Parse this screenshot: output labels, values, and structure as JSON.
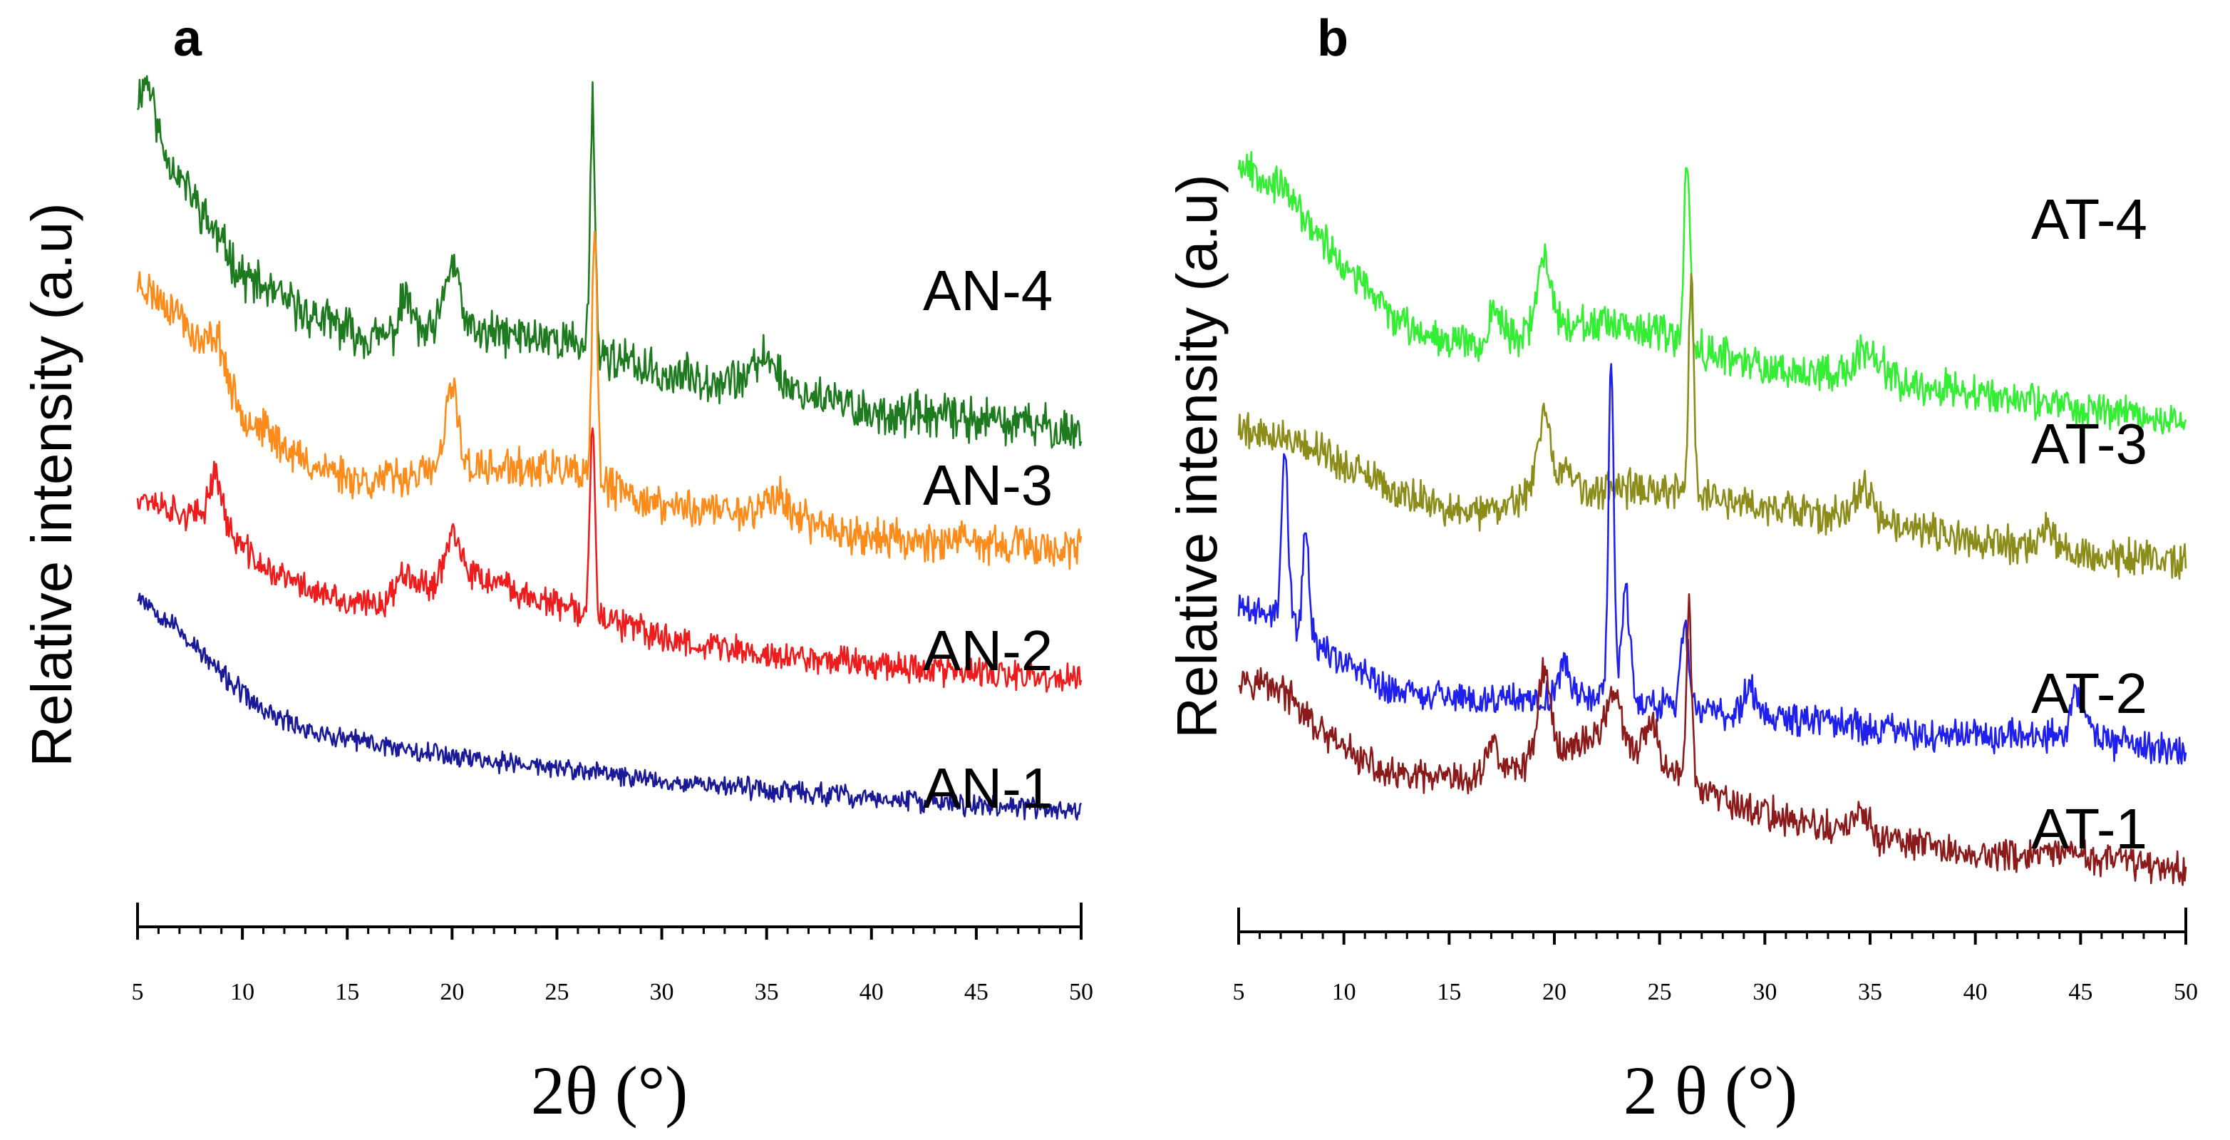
{
  "chart_data": [
    {
      "panel": "a",
      "type": "line",
      "title": "",
      "xlabel": "2θ (°)",
      "ylabel": "Relative intensity (a.u)",
      "xlim": [
        5,
        50
      ],
      "x_ticks": [
        5,
        10,
        15,
        20,
        25,
        30,
        35,
        40,
        45,
        50
      ],
      "grid": false,
      "series": [
        {
          "name": "AN-4",
          "color": "#1e7a1e",
          "baseline": 8.6,
          "noise": 0.28,
          "seed": 11,
          "amorphous": [
            [
              5,
              12.3
            ],
            [
              7,
              11.2
            ],
            [
              10,
              9.6
            ],
            [
              13,
              9.0
            ],
            [
              16,
              8.6
            ],
            [
              20,
              8.7
            ],
            [
              25,
              8.6
            ],
            [
              30,
              8.0
            ],
            [
              35,
              7.9
            ],
            [
              40,
              7.4
            ],
            [
              45,
              7.3
            ],
            [
              50,
              7.1
            ]
          ],
          "peaks": [
            [
              5.5,
              0.7,
              0.3
            ],
            [
              17.8,
              0.6,
              0.3
            ],
            [
              20.0,
              1.1,
              0.35
            ],
            [
              26.7,
              4.0,
              0.12
            ],
            [
              35.0,
              0.4,
              0.5
            ]
          ]
        },
        {
          "name": "AN-3",
          "color": "#ff8c1a",
          "baseline": 6.4,
          "noise": 0.25,
          "seed": 23,
          "amorphous": [
            [
              5,
              9.5
            ],
            [
              7,
              9.0
            ],
            [
              10,
              7.4
            ],
            [
              13,
              6.6
            ],
            [
              16,
              6.3
            ],
            [
              20,
              6.5
            ],
            [
              25,
              6.5
            ],
            [
              30,
              5.9
            ],
            [
              35,
              5.8
            ],
            [
              40,
              5.4
            ],
            [
              45,
              5.3
            ],
            [
              50,
              5.2
            ]
          ],
          "peaks": [
            [
              8.8,
              0.6,
              0.35
            ],
            [
              20.0,
              1.3,
              0.3
            ],
            [
              26.8,
              4.2,
              0.12
            ],
            [
              35.5,
              0.3,
              0.5
            ]
          ]
        },
        {
          "name": "AN-2",
          "color": "#ee1c1c",
          "baseline": 4.4,
          "noise": 0.2,
          "seed": 37,
          "amorphous": [
            [
              5,
              6.1
            ],
            [
              7,
              5.8
            ],
            [
              9,
              5.6
            ],
            [
              11,
              4.9
            ],
            [
              15,
              4.3
            ],
            [
              18,
              4.4
            ],
            [
              20,
              4.9
            ],
            [
              25,
              4.3
            ],
            [
              30,
              3.8
            ],
            [
              35,
              3.5
            ],
            [
              40,
              3.4
            ],
            [
              45,
              3.2
            ],
            [
              50,
              3.1
            ]
          ],
          "peaks": [
            [
              8.7,
              0.8,
              0.3
            ],
            [
              17.8,
              0.5,
              0.4
            ],
            [
              20.0,
              0.6,
              0.3
            ],
            [
              26.7,
              3.2,
              0.12
            ]
          ]
        },
        {
          "name": "AN-1",
          "color": "#1a1a99",
          "baseline": 2.0,
          "noise": 0.14,
          "seed": 53,
          "amorphous": [
            [
              5,
              4.5
            ],
            [
              7,
              3.9
            ],
            [
              9,
              3.2
            ],
            [
              11,
              2.6
            ],
            [
              14,
              2.2
            ],
            [
              18,
              2.0
            ],
            [
              22,
              1.8
            ],
            [
              30,
              1.5
            ],
            [
              40,
              1.2
            ],
            [
              50,
              1.0
            ]
          ],
          "peaks": []
        }
      ]
    },
    {
      "panel": "b",
      "type": "line",
      "title": "",
      "xlabel": "2 θ (°)",
      "ylabel": "Relative intensity (a.u)",
      "xlim": [
        5,
        50
      ],
      "x_ticks": [
        5,
        10,
        15,
        20,
        25,
        30,
        35,
        40,
        45,
        50
      ],
      "grid": false,
      "series": [
        {
          "name": "AT-4",
          "color": "#33ee33",
          "baseline": 8.5,
          "noise": 0.22,
          "seed": 67,
          "amorphous": [
            [
              5,
              11.2
            ],
            [
              7,
              10.8
            ],
            [
              10,
              9.6
            ],
            [
              13,
              8.7
            ],
            [
              17,
              8.4
            ],
            [
              20,
              8.8
            ],
            [
              25,
              8.6
            ],
            [
              30,
              8.1
            ],
            [
              35,
              8.0
            ],
            [
              40,
              7.7
            ],
            [
              45,
              7.5
            ],
            [
              50,
              7.3
            ]
          ],
          "peaks": [
            [
              17.2,
              0.5,
              0.35
            ],
            [
              19.5,
              1.0,
              0.3
            ],
            [
              26.3,
              2.8,
              0.14
            ],
            [
              35.0,
              0.4,
              0.5
            ]
          ]
        },
        {
          "name": "AT-3",
          "color": "#8c8c1a",
          "baseline": 6.3,
          "noise": 0.22,
          "seed": 79,
          "amorphous": [
            [
              5,
              7.2
            ],
            [
              8,
              7.0
            ],
            [
              12,
              6.3
            ],
            [
              16,
              5.9
            ],
            [
              19,
              6.2
            ],
            [
              25,
              6.3
            ],
            [
              30,
              6.0
            ],
            [
              35,
              5.8
            ],
            [
              40,
              5.5
            ],
            [
              45,
              5.3
            ],
            [
              50,
              5.2
            ]
          ],
          "peaks": [
            [
              19.5,
              1.2,
              0.3
            ],
            [
              20.5,
              0.4,
              0.3
            ],
            [
              26.5,
              3.3,
              0.12
            ],
            [
              34.7,
              0.5,
              0.4
            ],
            [
              43.5,
              0.3,
              0.4
            ]
          ]
        },
        {
          "name": "AT-2",
          "color": "#1f1fee",
          "baseline": 3.5,
          "noise": 0.2,
          "seed": 89,
          "amorphous": [
            [
              5,
              4.5
            ],
            [
              7,
              4.4
            ],
            [
              9,
              3.9
            ],
            [
              12,
              3.3
            ],
            [
              17,
              3.1
            ],
            [
              21,
              3.2
            ],
            [
              26,
              3.0
            ],
            [
              30,
              2.9
            ],
            [
              35,
              2.7
            ],
            [
              40,
              2.6
            ],
            [
              45,
              2.6
            ],
            [
              50,
              2.3
            ]
          ],
          "peaks": [
            [
              7.2,
              2.5,
              0.15
            ],
            [
              8.2,
              1.6,
              0.15
            ],
            [
              20.5,
              0.4,
              0.3
            ],
            [
              22.7,
              5.0,
              0.13
            ],
            [
              23.4,
              1.6,
              0.2
            ],
            [
              26.2,
              1.2,
              0.2
            ],
            [
              29.3,
              0.4,
              0.3
            ],
            [
              44.9,
              0.6,
              0.3
            ]
          ]
        },
        {
          "name": "AT-1",
          "color": "#8b1a1a",
          "baseline": 1.8,
          "noise": 0.2,
          "seed": 97,
          "amorphous": [
            [
              5,
              3.5
            ],
            [
              7,
              3.3
            ],
            [
              9,
              2.6
            ],
            [
              12,
              2.0
            ],
            [
              16,
              1.9
            ],
            [
              19,
              2.2
            ],
            [
              22,
              2.6
            ],
            [
              25,
              2.2
            ],
            [
              28,
              1.6
            ],
            [
              33,
              1.2
            ],
            [
              40,
              0.8
            ],
            [
              45,
              0.8
            ],
            [
              50,
              0.6
            ]
          ],
          "peaks": [
            [
              17.0,
              0.5,
              0.3
            ],
            [
              19.5,
              1.3,
              0.3
            ],
            [
              22.8,
              0.8,
              0.3
            ],
            [
              24.6,
              0.5,
              0.3
            ],
            [
              26.4,
              2.6,
              0.12
            ],
            [
              34.5,
              0.3,
              0.4
            ]
          ]
        }
      ]
    }
  ]
}
